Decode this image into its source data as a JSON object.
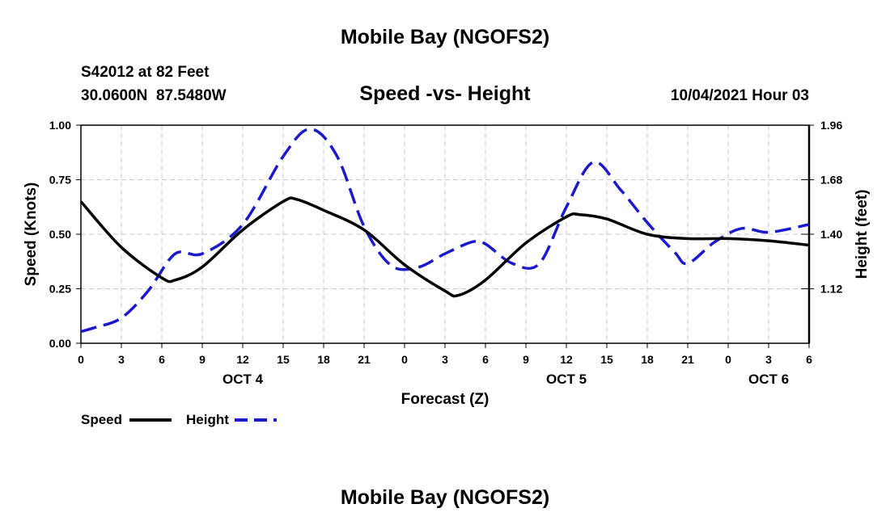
{
  "chart_data": {
    "type": "line",
    "title": "Mobile Bay (NGOFS2)",
    "footer_title": "Mobile Bay (NGOFS2)",
    "station": "S42012 at 82 Feet",
    "location": "30.0600N  87.5480W",
    "subtitle": "Speed -vs- Height",
    "datetime": "10/04/2021 Hour 03",
    "xlabel": "Forecast (Z)",
    "ylabel_left": "Speed (Knots)",
    "ylabel_right": "Height (feet)",
    "xlim": [
      0,
      54
    ],
    "ylim_left": [
      0,
      1
    ],
    "ylim_right": [
      0.84,
      1.96
    ],
    "x_ticks": [
      0,
      3,
      6,
      9,
      12,
      15,
      18,
      21,
      24,
      27,
      30,
      33,
      36,
      39,
      42,
      45,
      48,
      51,
      54
    ],
    "x_tick_labels": [
      "0",
      "3",
      "6",
      "9",
      "12",
      "15",
      "18",
      "21",
      "0",
      "3",
      "6",
      "9",
      "12",
      "15",
      "18",
      "21",
      "0",
      "3",
      "6"
    ],
    "left_ticks": [
      0,
      0.25,
      0.5,
      0.75,
      1.0
    ],
    "left_tick_labels": [
      "0.00",
      "0.25",
      "0.50",
      "0.75",
      "1.00"
    ],
    "right_ticks": [
      1.12,
      1.4,
      1.68,
      1.96
    ],
    "right_tick_labels": [
      "1.12",
      "1.40",
      "1.68",
      "1.96"
    ],
    "day_labels": [
      {
        "x": 12,
        "label": "OCT 4"
      },
      {
        "x": 36,
        "label": "OCT 5"
      },
      {
        "x": 51,
        "label": "OCT 6"
      }
    ],
    "grid": true,
    "legend": [
      {
        "name": "Speed",
        "color": "#000000",
        "style": "solid"
      },
      {
        "name": "Height",
        "color": "#1a1acc",
        "style": "dashed"
      }
    ],
    "series": [
      {
        "name": "Speed",
        "axis": "left",
        "color": "#000000",
        "style": "solid",
        "x": [
          0,
          3,
          6,
          7,
          9,
          12,
          15,
          16,
          18,
          21,
          24,
          27,
          28,
          30,
          33,
          36,
          37,
          39,
          42,
          45,
          48,
          51,
          54
        ],
        "y": [
          0.65,
          0.44,
          0.3,
          0.29,
          0.35,
          0.52,
          0.65,
          0.66,
          0.61,
          0.52,
          0.36,
          0.24,
          0.22,
          0.29,
          0.46,
          0.58,
          0.59,
          0.57,
          0.5,
          0.48,
          0.48,
          0.47,
          0.45
        ]
      },
      {
        "name": "Height",
        "axis": "right",
        "color": "#1a1acc",
        "style": "dashed",
        "x": [
          0,
          1,
          3,
          5,
          7,
          9,
          12,
          15,
          17,
          19,
          21,
          23,
          25,
          27,
          29,
          30,
          32,
          34,
          36,
          38,
          40,
          42,
          44,
          45,
          47,
          49,
          51,
          54
        ],
        "y": [
          0.9,
          0.92,
          0.97,
          1.11,
          1.3,
          1.3,
          1.45,
          1.8,
          1.94,
          1.8,
          1.44,
          1.24,
          1.23,
          1.3,
          1.36,
          1.35,
          1.25,
          1.25,
          1.54,
          1.77,
          1.63,
          1.46,
          1.31,
          1.25,
          1.36,
          1.43,
          1.41,
          1.45
        ]
      }
    ]
  }
}
